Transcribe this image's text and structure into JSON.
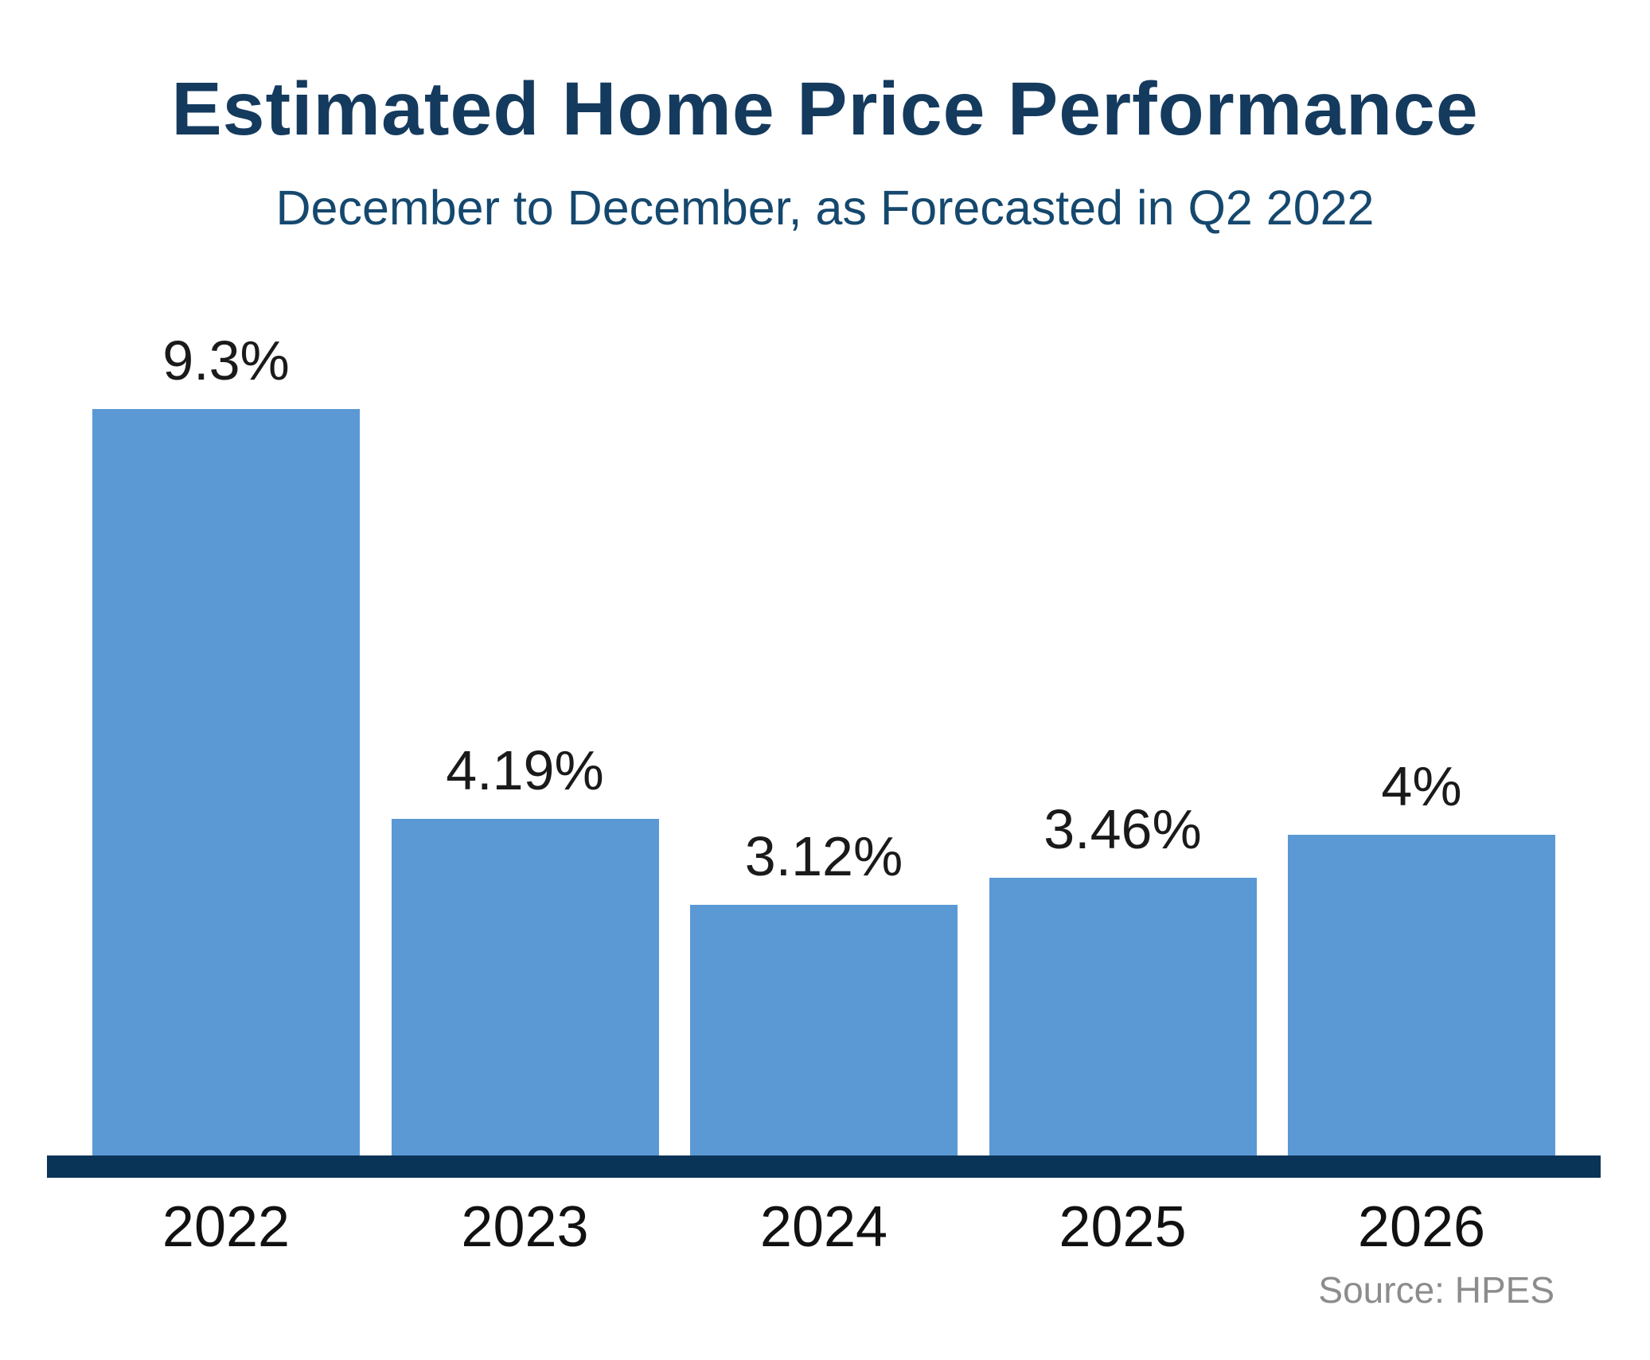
{
  "page": {
    "title": "Estimated Home Price Performance",
    "subtitle": "December to December, as Forecasted in Q2 2022",
    "source": "Source: HPES"
  },
  "chart_data": {
    "type": "bar",
    "title": "Estimated Home Price Performance",
    "subtitle": "December to December, as Forecasted in Q2 2022",
    "categories": [
      "2022",
      "2023",
      "2024",
      "2025",
      "2026"
    ],
    "values": [
      9.3,
      4.19,
      3.12,
      3.46,
      4
    ],
    "value_labels": [
      "9.3%",
      "4.19%",
      "3.12%",
      "3.46%",
      "4%"
    ],
    "unit": "percent",
    "xlabel": "",
    "ylabel": "",
    "ylim": [
      0,
      9.3
    ],
    "grid": false,
    "legend": false,
    "y_axis_shown": false,
    "baseline": "thick navy bar",
    "source": "Source: HPES",
    "colors": {
      "background": "#ffffff",
      "bar": "#5b99d5",
      "axis_line": "#0a3457",
      "title_text": "#143a5e",
      "subtitle_text": "#15486e",
      "value_label_text": "#1a1a1a",
      "category_label_text": "#111111",
      "source_text": "#8c8c8c"
    }
  }
}
